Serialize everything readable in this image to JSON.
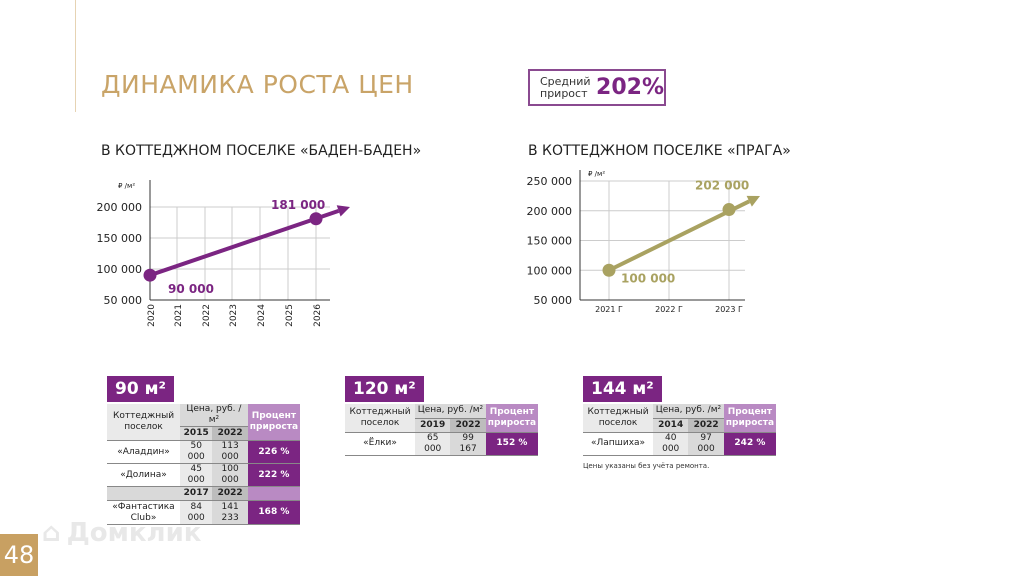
{
  "title": "ДИНАМИКА РОСТА ЦЕН",
  "average": {
    "label": "Средний прирост",
    "value": "202%"
  },
  "page_number": "48",
  "watermark": "Домклик",
  "note": "Цены указаны без учёта ремонта.",
  "colors": {
    "purple": "#7b2582",
    "olive": "#a9a261",
    "gold": "#c9a468"
  },
  "chart_data": [
    {
      "type": "line",
      "title": "В КОТТЕДЖНОМ ПОСЕЛКЕ «БАДЕН-БАДЕН»",
      "ylabel": "₽ /м²",
      "categories": [
        "2020",
        "2021",
        "2022",
        "2023",
        "2024",
        "2025",
        "2026"
      ],
      "yticks": [
        "50 000",
        "100 000",
        "150 000",
        "200 000"
      ],
      "ylim": [
        50000,
        200000
      ],
      "points": [
        {
          "x": "2020",
          "y": 90000,
          "label": "90 000"
        },
        {
          "x": "2026",
          "y": 181000,
          "label": "181 000"
        }
      ],
      "grid": true
    },
    {
      "type": "line",
      "title": "В КОТТЕДЖНОМ ПОСЕЛКЕ «ПРАГА»",
      "ylabel": "₽ /м²",
      "categories": [
        "2021 Г",
        "2022 Г",
        "2023 Г"
      ],
      "yticks": [
        "50 000",
        "100 000",
        "150 000",
        "200 000",
        "250 000"
      ],
      "ylim": [
        50000,
        250000
      ],
      "points": [
        {
          "x": "2021 Г",
          "y": 100000,
          "label": "100 000"
        },
        {
          "x": "2023 Г",
          "y": 202000,
          "label": "202 000"
        }
      ],
      "grid": true
    }
  ],
  "tables": [
    {
      "area": "90 м²",
      "col_village": "Коттеджный поселок",
      "col_price": "Цена, руб. /м²",
      "col_pct": "Процент прироста",
      "years": [
        "2015",
        "2022"
      ],
      "rows": [
        {
          "name": "«Аладдин»",
          "a": "50 000",
          "b": "113 000",
          "pct": "226 %"
        },
        {
          "name": "«Долина»",
          "a": "45 000",
          "b": "100 000",
          "pct": "222 %"
        }
      ],
      "years2": [
        "2017",
        "2022"
      ],
      "rows2": [
        {
          "name": "«Фантастика Club»",
          "a": "84 000",
          "b": "141 233",
          "pct": "168 %"
        }
      ]
    },
    {
      "area": "120 м²",
      "col_village": "Коттеджный поселок",
      "col_price": "Цена, руб. /м²",
      "col_pct": "Процент прироста",
      "years": [
        "2019",
        "2022"
      ],
      "rows": [
        {
          "name": "«Ёлки»",
          "a": "65 000",
          "b": "99 167",
          "pct": "152 %"
        }
      ]
    },
    {
      "area": "144 м²",
      "col_village": "Коттеджный поселок",
      "col_price": "Цена, руб. /м²",
      "col_pct": "Процент прироста",
      "years": [
        "2014",
        "2022"
      ],
      "rows": [
        {
          "name": "«Лапшиха»",
          "a": "40 000",
          "b": "97 000",
          "pct": "242 %"
        }
      ]
    }
  ]
}
